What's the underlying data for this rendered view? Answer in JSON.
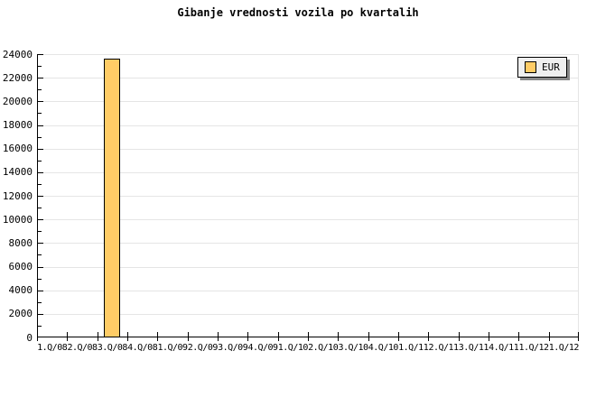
{
  "title": "Gibanje vrednosti vozila po kvartalih",
  "legend": {
    "label": "EUR",
    "swatch_color": "#FFCC66"
  },
  "colors": {
    "bar_fill": "#FFCC66",
    "bar_border": "#000000",
    "gridline": "#E5E5E5",
    "axis": "#000000",
    "legend_background": "#EFEFEF",
    "legend_shadow": "#888888",
    "background": "#FFFFFF",
    "text": "#000000"
  },
  "chart_data": {
    "type": "bar",
    "title": "Gibanje vrednosti vozila po kvartalih",
    "categories": [
      "1.Q/08",
      "2.Q/08",
      "3.Q/08",
      "4.Q/08",
      "1.Q/09",
      "2.Q/09",
      "3.Q/09",
      "4.Q/09",
      "1.Q/10",
      "2.Q/10",
      "3.Q/10",
      "4.Q/10",
      "1.Q/11",
      "2.Q/11",
      "3.Q/11",
      "4.Q/11",
      "1.Q/12",
      "1.Q/12"
    ],
    "series": [
      {
        "name": "EUR",
        "values": [
          0,
          0,
          23600,
          0,
          0,
          0,
          0,
          0,
          0,
          0,
          0,
          0,
          0,
          0,
          0,
          0,
          0,
          0
        ]
      }
    ],
    "xlabel": "",
    "ylabel": "",
    "ylim": [
      0,
      24000
    ],
    "ytick_step": 2000,
    "minor_ytick_step": 1000,
    "yticklabels": [
      "0",
      "2000",
      "4000",
      "6000",
      "8000",
      "10000",
      "12000",
      "14000",
      "16000",
      "18000",
      "20000",
      "22000",
      "24000"
    ],
    "grid": "horizontal",
    "legend_position": "top-right"
  }
}
